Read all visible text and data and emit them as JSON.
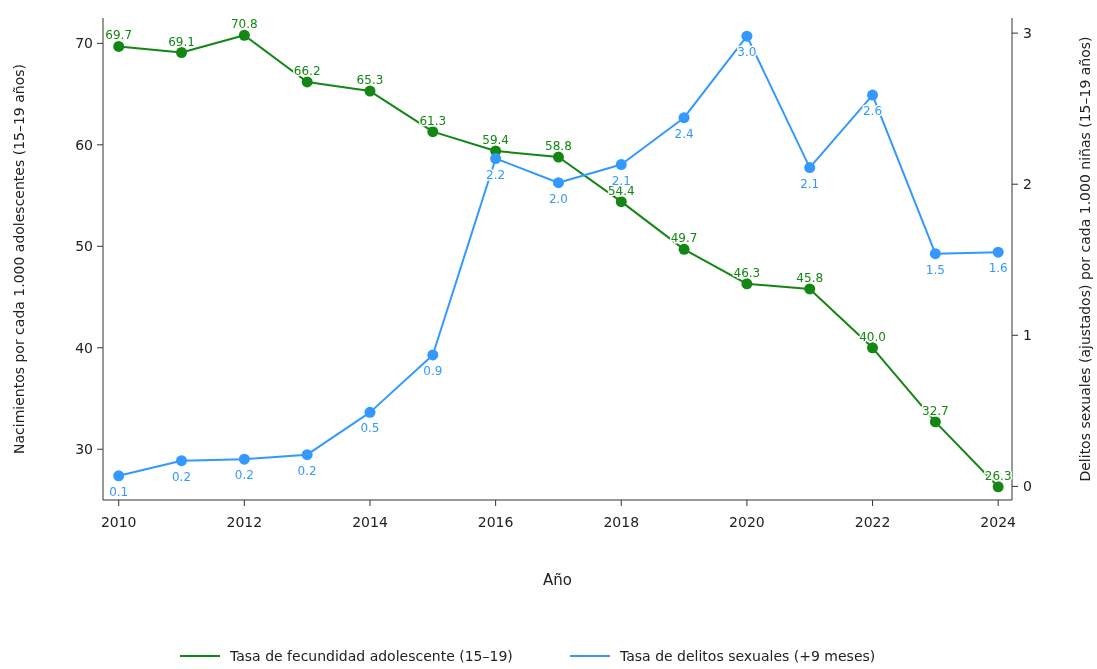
{
  "chart_data": {
    "type": "line",
    "xlabel": "Año",
    "ylabel": "Nacimientos por cada 1.000 adolescentes (15–19 años)",
    "y2label": "Delitos sexuales (ajustados) por cada 1.000 niñas (15–19 años)",
    "x": [
      2010,
      2011,
      2012,
      2013,
      2014,
      2015,
      2016,
      2017,
      2018,
      2019,
      2020,
      2021,
      2022,
      2023,
      2024
    ],
    "xlim": [
      2009.75,
      2024.22
    ],
    "xticks": [
      2010,
      2012,
      2014,
      2016,
      2018,
      2020,
      2022,
      2024
    ],
    "ylim": [
      25,
      72.5
    ],
    "yticks": [
      30,
      40,
      50,
      60,
      70
    ],
    "y2lim": [
      -0.09,
      3.1
    ],
    "y2ticks": [
      0,
      1,
      2,
      3
    ],
    "grid": false,
    "legend": "bottom",
    "marker": "circle",
    "line_style": "solid",
    "series": [
      {
        "name": "Tasa de fecundidad adolescente (15–19)",
        "color": "#138613",
        "values": [
          69.7,
          69.1,
          70.8,
          66.2,
          65.3,
          61.3,
          59.4,
          58.8,
          54.4,
          49.7,
          46.3,
          45.8,
          40.0,
          32.7,
          26.3
        ],
        "value_labels": [
          "69.7",
          "69.1",
          "70.8",
          "66.2",
          "65.3",
          "61.3",
          "59.4",
          "58.8",
          "54.4",
          "49.7",
          "46.3",
          "45.8",
          "40.0",
          "32.7",
          "26.3"
        ]
      },
      {
        "name": "Tasa de delitos sexuales (+9 meses)",
        "color": "#3399ff",
        "axis": "y2",
        "values": [
          0.07,
          0.17,
          0.18,
          0.21,
          0.49,
          0.87,
          2.17,
          2.01,
          2.13,
          2.44,
          2.98,
          2.11,
          2.59,
          1.54,
          1.55
        ],
        "value_labels": [
          "0.1",
          "0.2",
          "0.2",
          "0.2",
          "0.5",
          "0.9",
          "2.2",
          "2.0",
          "2.1",
          "2.4",
          "3.0",
          "2.1",
          "2.6",
          "1.5",
          "1.6"
        ]
      }
    ]
  }
}
